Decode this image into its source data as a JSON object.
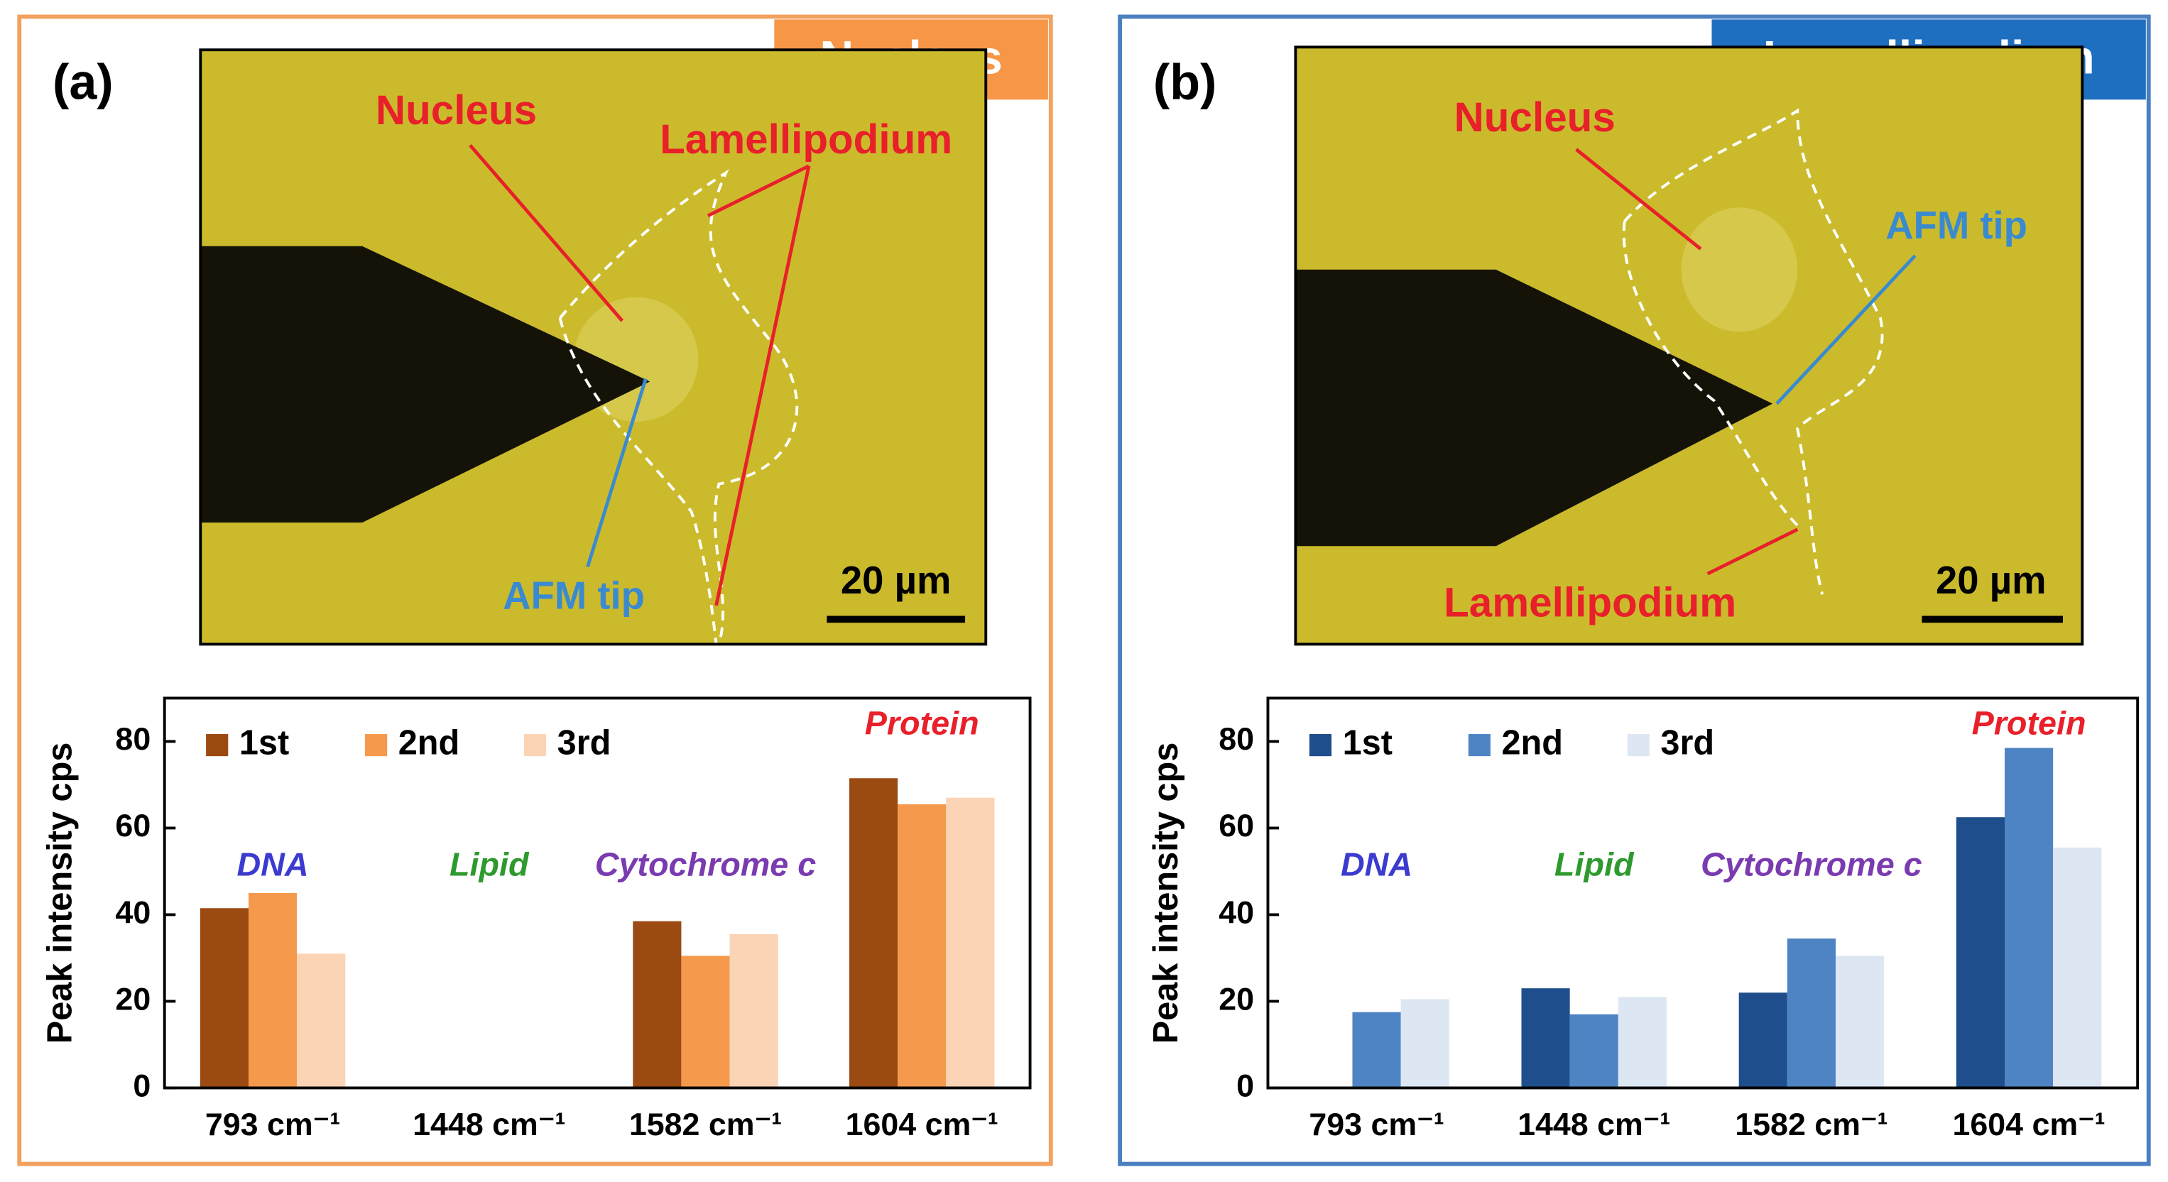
{
  "panels": [
    {
      "label": "(a)",
      "badge": "Nucleus",
      "image_labels": [
        "Nucleus",
        "Lamellipodium",
        "AFM tip"
      ],
      "scale_bar": "20 µm"
    },
    {
      "label": "(b)",
      "badge": "Lamellipodium",
      "image_labels": [
        "Nucleus",
        "AFM tip",
        "Lamellipodium"
      ],
      "scale_bar": "20 µm"
    }
  ],
  "chart_data": [
    {
      "type": "bar",
      "ylabel": "Peak intensity  cps",
      "categories": [
        "793 cm⁻¹",
        "1448 cm⁻¹",
        "1582 cm⁻¹",
        "1604 cm⁻¹"
      ],
      "series": [
        {
          "name": "1st",
          "color": "#9b4a12",
          "values": [
            41.5,
            0,
            38.5,
            71.5
          ]
        },
        {
          "name": "2nd",
          "color": "#f59a4c",
          "values": [
            45,
            0,
            30.5,
            65.5
          ]
        },
        {
          "name": "3rd",
          "color": "#fbd3b5",
          "values": [
            31,
            0,
            35.5,
            67
          ]
        }
      ],
      "annotations": [
        {
          "text": "DNA",
          "color": "#3b3bd0"
        },
        {
          "text": "Lipid",
          "color": "#2e9a2e"
        },
        {
          "text": "Cytochrome c",
          "color": "#7a3bb0"
        },
        {
          "text": "Protein",
          "color": "#e8202a"
        }
      ],
      "ylim": [
        0,
        90
      ],
      "yticks": [
        0,
        20,
        40,
        60,
        80
      ],
      "legend": "top-left"
    },
    {
      "type": "bar",
      "ylabel": "Peak intensity  cps",
      "categories": [
        "793 cm⁻¹",
        "1448 cm⁻¹",
        "1582 cm⁻¹",
        "1604 cm⁻¹"
      ],
      "series": [
        {
          "name": "1st",
          "color": "#1f4e8c",
          "values": [
            0,
            23,
            22,
            62.5
          ]
        },
        {
          "name": "2nd",
          "color": "#4f84c4",
          "values": [
            17.5,
            17,
            34.5,
            78.5
          ]
        },
        {
          "name": "3rd",
          "color": "#dde7f3",
          "values": [
            20.5,
            21,
            30.5,
            55.5
          ]
        }
      ],
      "annotations": [
        {
          "text": "DNA",
          "color": "#3b3bd0"
        },
        {
          "text": "Lipid",
          "color": "#2e9a2e"
        },
        {
          "text": "Cytochrome c",
          "color": "#7a3bb0"
        },
        {
          "text": "Protein",
          "color": "#e8202a"
        }
      ],
      "ylim": [
        0,
        90
      ],
      "yticks": [
        0,
        20,
        40,
        60,
        80
      ],
      "legend": "top-left"
    }
  ]
}
